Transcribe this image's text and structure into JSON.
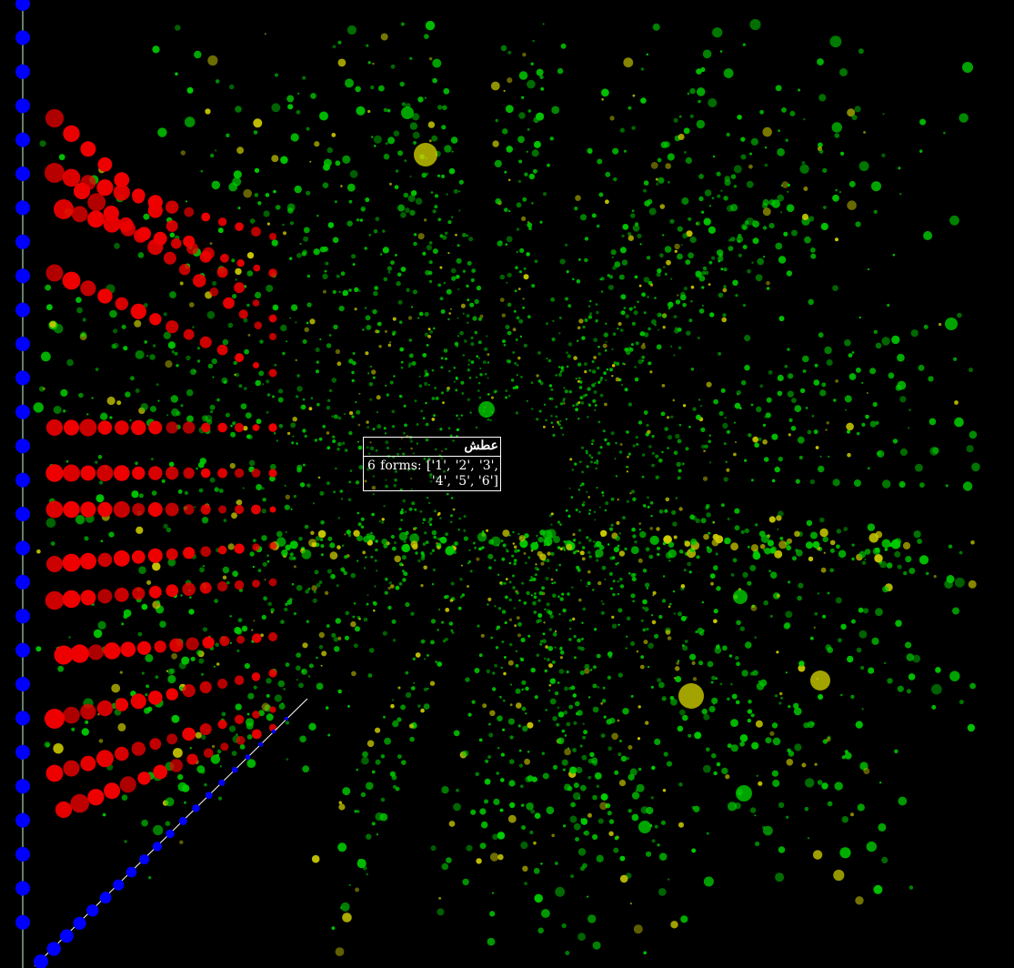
{
  "tooltip": {
    "title": "عطش",
    "body": "6 forms: ['1', '2', '3', '4', '5', '6']"
  },
  "colors": {
    "background": "#000000",
    "primary_points": "#00cc00",
    "secondary_points": "#cccc00",
    "highlighted_group": "#ee0000",
    "axis_markers": "#0000ff",
    "axis_line": "#ffffff",
    "tooltip_border": "#ffffff",
    "tooltip_text": "#ffffff"
  }
}
